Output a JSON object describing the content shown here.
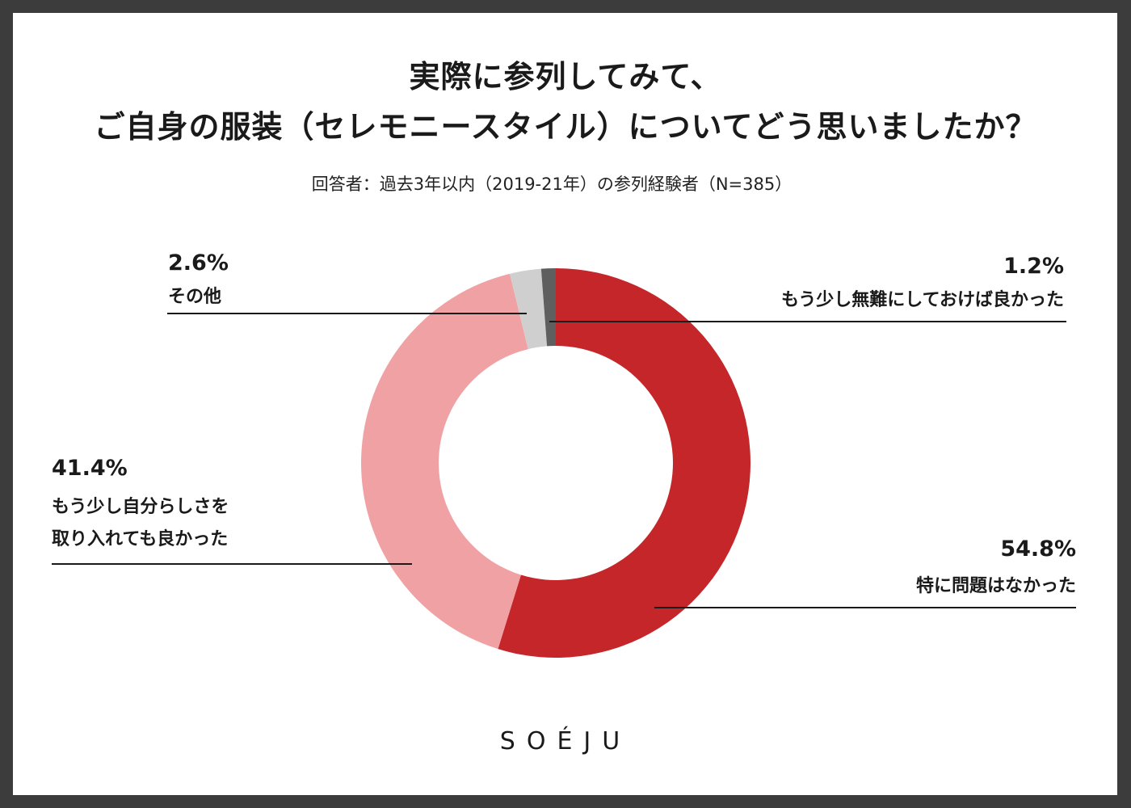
{
  "chart_data": {
    "type": "donut",
    "title_line1": "実際に参列してみて、",
    "title_line2": "ご自身の服装（セレモニースタイル）についてどう思いましたか？",
    "subtitle": "回答者：過去3年以内（2019-21年）の参列経験者（N=385）",
    "series": [
      {
        "name": "特に問題はなかった",
        "value": 54.8,
        "label": "54.8%",
        "color": "#c4262a"
      },
      {
        "name_line1": "もう少し自分らしさを",
        "name_line2": "取り入れても良かった",
        "value": 41.4,
        "label": "41.4%",
        "color": "#f0a1a4"
      },
      {
        "name": "その他",
        "value": 2.6,
        "label": "2.6%",
        "color": "#cfcfcf"
      },
      {
        "name": "もう少し無難にしておけば良かった",
        "value": 1.2,
        "label": "1.2%",
        "color": "#5f5f5f"
      }
    ]
  },
  "brand": {
    "logo_text": "SOÉJU"
  }
}
